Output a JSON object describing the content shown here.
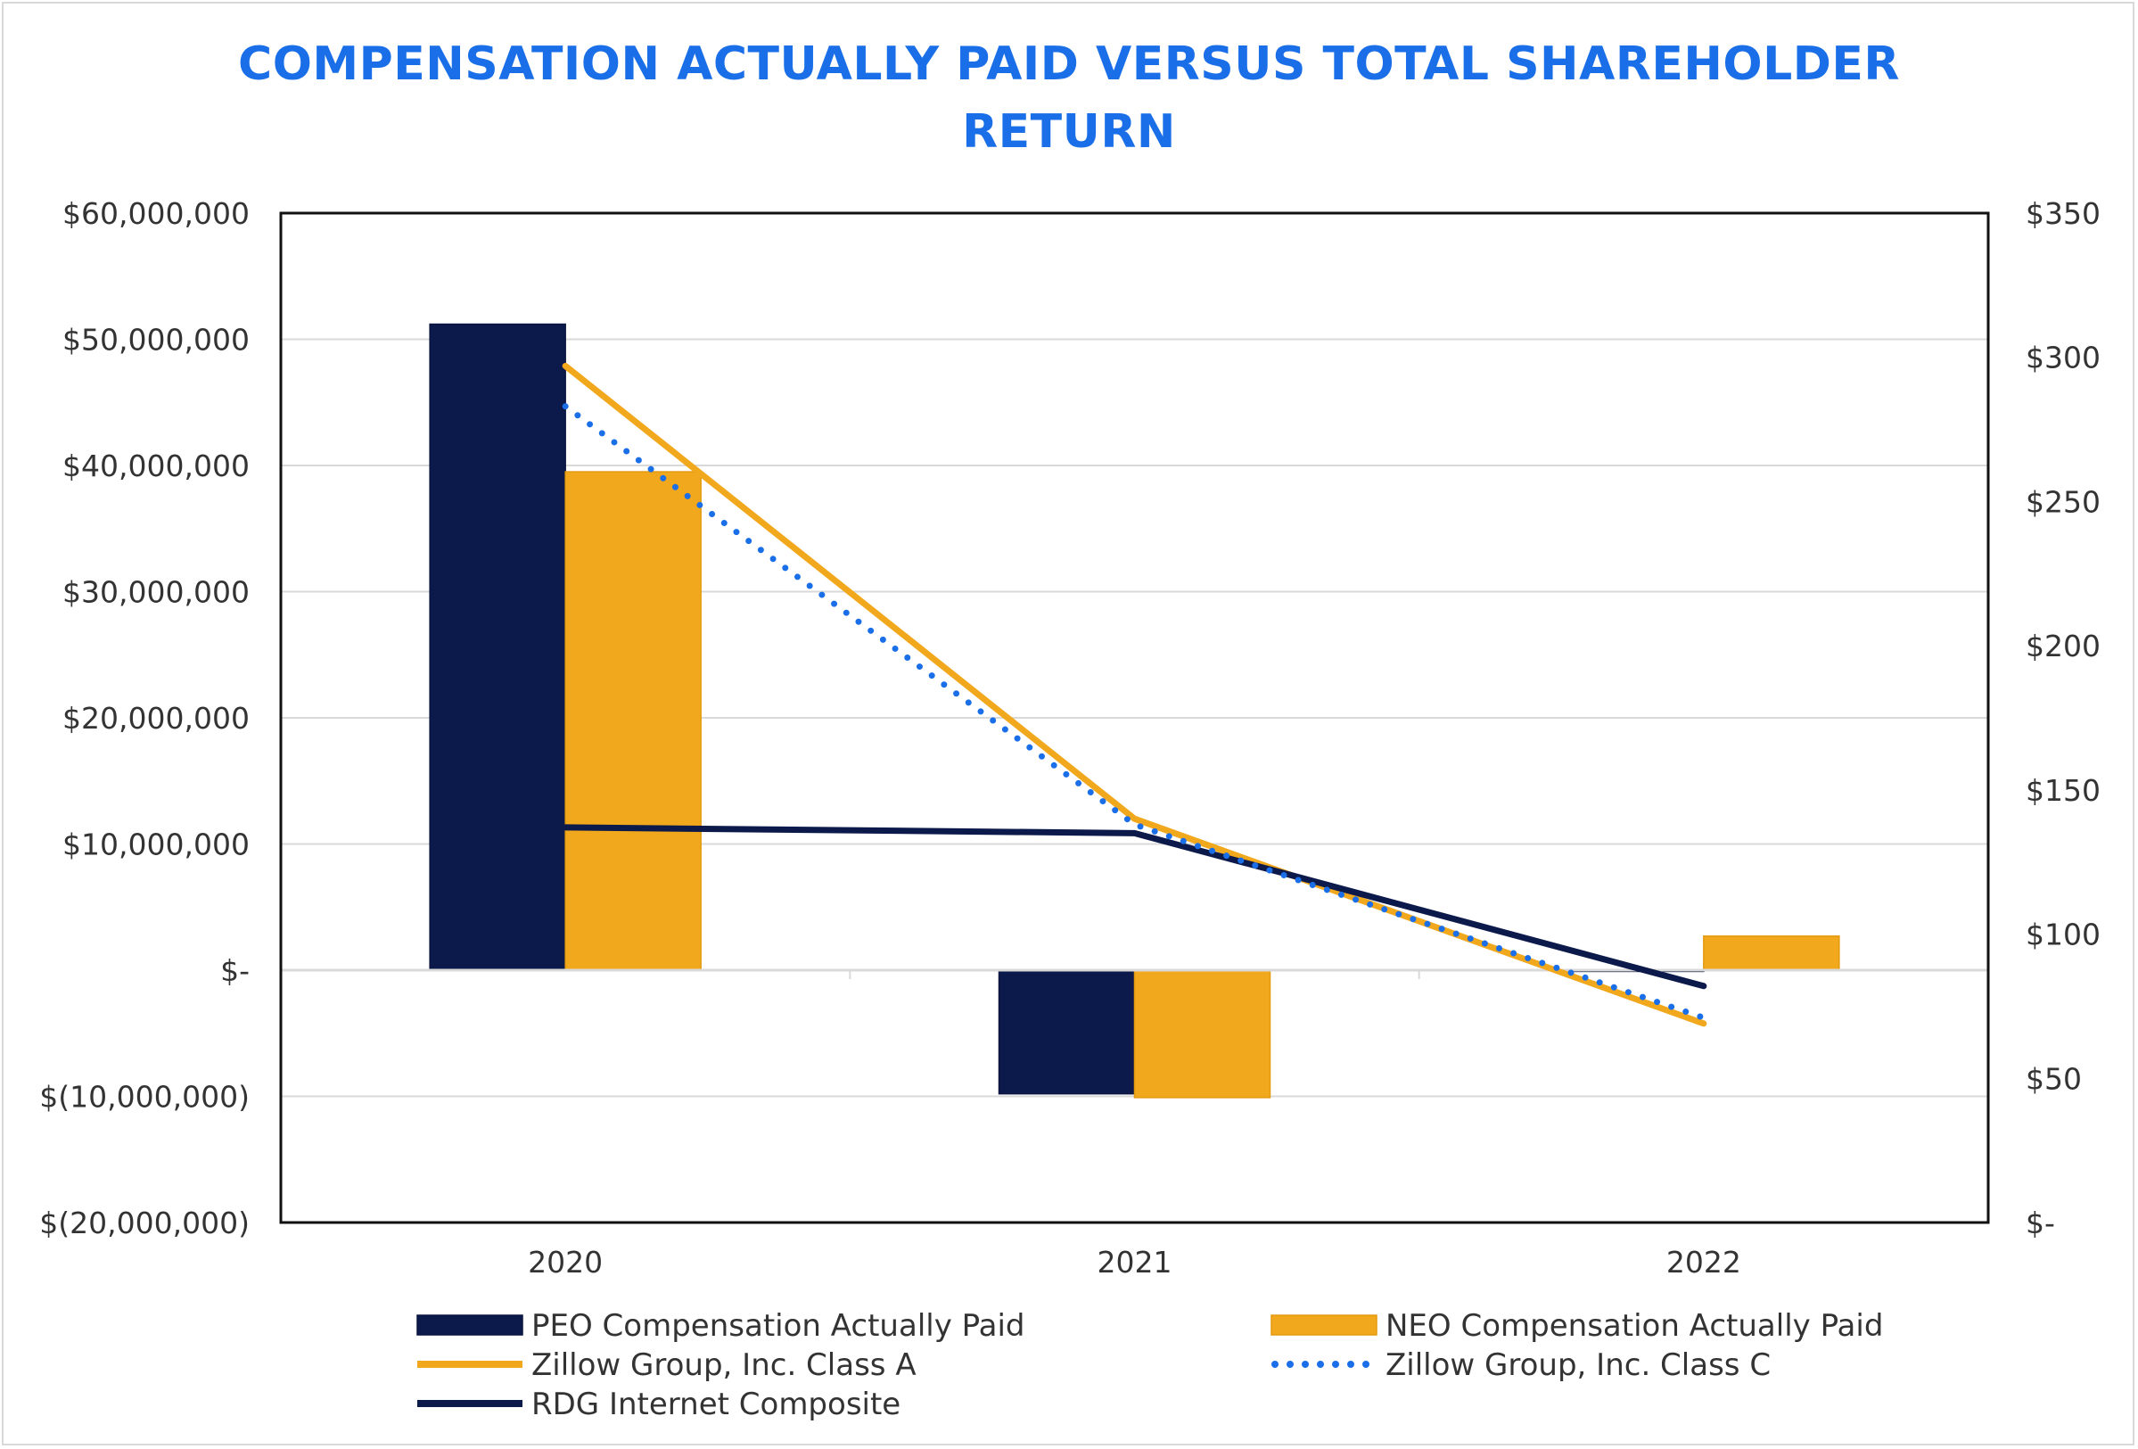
{
  "chart_data": {
    "type": "bar",
    "title_line1": "COMPENSATION ACTUALLY PAID VERSUS TOTAL SHAREHOLDER",
    "title_line2": "RETURN",
    "categories": [
      "2020",
      "2021",
      "2022"
    ],
    "left_axis": {
      "ylim": [
        -20000000,
        60000000
      ],
      "ticks": [
        60000000,
        50000000,
        40000000,
        30000000,
        20000000,
        10000000,
        0,
        -10000000,
        -20000000
      ],
      "tick_labels": [
        "$60,000,000",
        "$50,000,000",
        "$40,000,000",
        "$30,000,000",
        "$20,000,000",
        "$10,000,000",
        "$-",
        "$(10,000,000)",
        "$(20,000,000)"
      ]
    },
    "right_axis": {
      "ylim": [
        0,
        350
      ],
      "ticks": [
        350,
        300,
        250,
        200,
        150,
        100,
        50,
        0
      ],
      "tick_labels": [
        "$350",
        "$300",
        "$250",
        "$200",
        "$150",
        "$100",
        "$50",
        "$-"
      ]
    },
    "bar_series": [
      {
        "name": "PEO Compensation Actually Paid",
        "color": "#0c1a4b",
        "values": [
          51200000,
          -9800000,
          -100000
        ]
      },
      {
        "name": "NEO Compensation Actually Paid",
        "color": "#f2a81d",
        "values": [
          39500000,
          -10100000,
          2700000
        ]
      }
    ],
    "line_series": [
      {
        "name": "Zillow Group, Inc. Class A",
        "color": "#f2a81d",
        "style": "solid",
        "values": [
          297,
          140,
          69
        ]
      },
      {
        "name": "Zillow Group, Inc. Class C",
        "color": "#1a6fe8",
        "style": "dotted",
        "values": [
          283,
          138,
          71
        ]
      },
      {
        "name": "RDG Internet Composite",
        "color": "#0c1a4b",
        "style": "solid",
        "values": [
          137,
          135,
          82
        ]
      }
    ],
    "grid": true,
    "legend_position": "bottom"
  }
}
